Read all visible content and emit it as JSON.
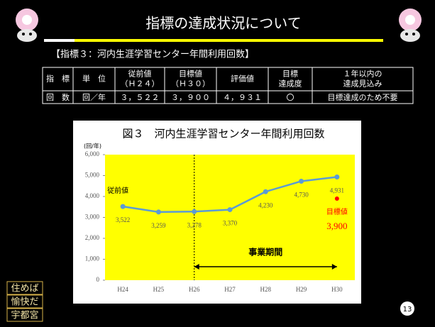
{
  "slide": {
    "title": "指標の達成状況について",
    "subtitle": "【指標３：河内生涯学習センター年間利用回数】",
    "page_number": "13",
    "slogan": [
      "住めば",
      "愉快だ",
      "宇都宮"
    ]
  },
  "table": {
    "header": [
      [
        "指　標"
      ],
      [
        "単　位"
      ],
      [
        "従前値",
        "（Ｈ２４）"
      ],
      [
        "目標値",
        "（Ｈ３０）"
      ],
      [
        "評価値"
      ],
      [
        "目標",
        "達成度"
      ],
      [
        "１年以内の",
        "達成見込み"
      ]
    ],
    "rows": [
      [
        "回　数",
        "回／年",
        "３，５２２",
        "３，９００",
        "４，９３１",
        "〇",
        "目標達成のため不要"
      ]
    ]
  },
  "chart_data": {
    "type": "line",
    "title": "図３　河内生涯学習センター年間利用回数",
    "y_unit": "(回/年)",
    "categories": [
      "H24",
      "H25",
      "H26",
      "H27",
      "H28",
      "H29",
      "H30"
    ],
    "values": [
      3522,
      3259,
      3278,
      3370,
      4230,
      4730,
      4931
    ],
    "value_labels": [
      "3,522",
      "3,259",
      "3,278",
      "3,370",
      "4,230",
      "4,730",
      "4,931"
    ],
    "color": "#5b9bd5",
    "background": "#ffff00",
    "ylim": [
      0,
      6000
    ],
    "yticks": [
      0,
      {
        "value": 1000,
        "label": "1,000"
      },
      {
        "value": 2000,
        "label": "2,000"
      },
      {
        "value": 3000,
        "label": "3,000"
      },
      {
        "value": 4000,
        "label": "4,000"
      },
      {
        "value": 5000,
        "label": "5,000"
      },
      {
        "value": 6000,
        "label": "6,000"
      }
    ],
    "baseline_label": "従前値",
    "period_label": "事業期間",
    "target": {
      "label": "目標値",
      "value": 3900,
      "value_label": "3,900",
      "color": "#ff0000"
    }
  }
}
